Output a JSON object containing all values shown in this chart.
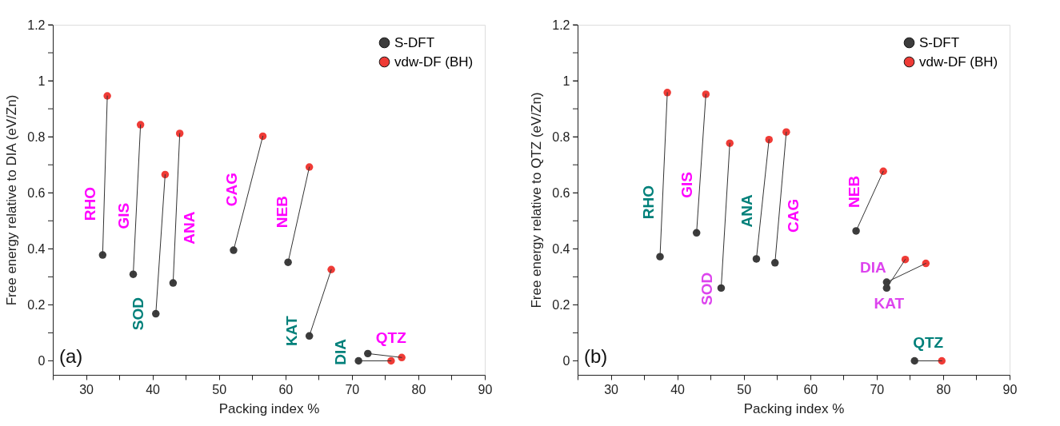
{
  "chart_data": [
    {
      "type": "scatter",
      "xlabel": "Packing index %",
      "ylabel": "Free energy relative to DIA (eV/Zn)",
      "xlim": [
        25,
        90
      ],
      "ylim": [
        -0.05,
        1.2
      ],
      "xticks": [
        {
          "value": 25,
          "label": null
        },
        30,
        {
          "value": 35,
          "label": null
        },
        40,
        {
          "value": 45,
          "label": null
        },
        50,
        {
          "value": 55,
          "label": null
        },
        60,
        {
          "value": 65,
          "label": null
        },
        70,
        {
          "value": 75,
          "label": null
        },
        80,
        {
          "value": 85,
          "label": null
        },
        90
      ],
      "yticks": [
        0,
        {
          "value": 0.1,
          "label": null
        },
        0.2,
        {
          "value": 0.3,
          "label": null
        },
        0.4,
        {
          "value": 0.5,
          "label": null
        },
        0.6,
        {
          "value": 0.7,
          "label": null
        },
        0.8,
        {
          "value": 0.9,
          "label": null
        },
        1,
        {
          "value": 1.1,
          "label": null
        },
        1.2
      ],
      "grid": false,
      "legend": "top right",
      "marker": "circle",
      "series": [
        {
          "type": "line",
          "marker": "none",
          "color": "#333333",
          "x": [
            32.5,
            33.2
          ],
          "values": [
            0.378,
            0.946
          ]
        },
        {
          "type": "line",
          "marker": "none",
          "color": "#333333",
          "x": [
            37.1,
            38.2
          ],
          "values": [
            0.309,
            0.843
          ]
        },
        {
          "type": "line",
          "marker": "none",
          "color": "#333333",
          "x": [
            40.5,
            41.9
          ],
          "values": [
            0.168,
            0.665
          ]
        },
        {
          "type": "line",
          "marker": "none",
          "color": "#333333",
          "x": [
            43.1,
            44.1
          ],
          "values": [
            0.278,
            0.812
          ]
        },
        {
          "type": "line",
          "marker": "none",
          "color": "#333333",
          "x": [
            52.2,
            56.6
          ],
          "values": [
            0.395,
            0.802
          ]
        },
        {
          "type": "line",
          "marker": "none",
          "color": "#333333",
          "x": [
            60.4,
            63.6
          ],
          "values": [
            0.352,
            0.692
          ]
        },
        {
          "type": "line",
          "marker": "none",
          "color": "#333333",
          "x": [
            63.6,
            66.9
          ],
          "values": [
            0.089,
            0.326
          ]
        },
        {
          "type": "line",
          "marker": "none",
          "color": "#333333",
          "x": [
            71.0,
            75.9
          ],
          "values": [
            0.0,
            0.0
          ]
        },
        {
          "type": "line",
          "marker": "none",
          "color": "#333333",
          "x": [
            72.4,
            77.5
          ],
          "values": [
            0.026,
            0.012
          ]
        },
        {
          "name": "S-DFT",
          "color": "#3c3c3c",
          "x": [
            32.5,
            37.1,
            40.5,
            43.1,
            52.2,
            60.4,
            63.6,
            71.0,
            72.4
          ],
          "values": [
            0.378,
            0.309,
            0.168,
            0.278,
            0.395,
            0.352,
            0.089,
            0.0,
            0.026
          ]
        },
        {
          "name": "vdw-DF (BH)",
          "color": "#ef3b36",
          "x": [
            33.2,
            38.2,
            41.9,
            44.1,
            56.6,
            63.6,
            66.9,
            75.9,
            77.5
          ],
          "values": [
            0.946,
            0.843,
            0.665,
            0.812,
            0.802,
            0.692,
            0.326,
            0.0,
            0.012
          ]
        }
      ],
      "annotations": [
        {
          "text": "RHO",
          "x": 32.5,
          "y": 0.378
        },
        {
          "text": "GIS",
          "x": 37.1,
          "y": 0.309
        },
        {
          "text": "SOD",
          "x": 40.5,
          "y": 0.168
        },
        {
          "text": "ANA",
          "x": 43.1,
          "y": 0.278
        },
        {
          "text": "CAG",
          "x": 52.2,
          "y": 0.395
        },
        {
          "text": "NEB",
          "x": 60.4,
          "y": 0.352
        },
        {
          "text": "KAT",
          "x": 63.6,
          "y": 0.089
        },
        {
          "text": "DIA",
          "x": 71.0,
          "y": 0.0
        },
        {
          "text": "QTZ",
          "x": 72.4,
          "y": 0.026
        },
        "(a)"
      ]
    },
    {
      "type": "scatter",
      "xlabel": "Packing index %",
      "ylabel": "Free energy relative to QTZ (eV/Zn)",
      "xlim": [
        25,
        90
      ],
      "ylim": [
        -0.05,
        1.2
      ],
      "xticks": [
        {
          "value": 25,
          "label": null
        },
        30,
        {
          "value": 35,
          "label": null
        },
        40,
        {
          "value": 45,
          "label": null
        },
        50,
        {
          "value": 55,
          "label": null
        },
        60,
        {
          "value": 65,
          "label": null
        },
        70,
        {
          "value": 75,
          "label": null
        },
        80,
        {
          "value": 85,
          "label": null
        },
        90
      ],
      "yticks": [
        0,
        {
          "value": 0.1,
          "label": null
        },
        0.2,
        {
          "value": 0.3,
          "label": null
        },
        0.4,
        {
          "value": 0.5,
          "label": null
        },
        0.6,
        {
          "value": 0.7,
          "label": null
        },
        0.8,
        {
          "value": 0.9,
          "label": null
        },
        1,
        {
          "value": 1.1,
          "label": null
        },
        1.2
      ],
      "grid": false,
      "legend": "top right",
      "marker": "circle",
      "series": [
        {
          "type": "line",
          "marker": "none",
          "color": "#333333",
          "x": [
            37.4,
            38.5
          ],
          "values": [
            0.372,
            0.958
          ]
        },
        {
          "type": "line",
          "marker": "none",
          "color": "#333333",
          "x": [
            42.9,
            44.3
          ],
          "values": [
            0.457,
            0.952
          ]
        },
        {
          "type": "line",
          "marker": "none",
          "color": "#333333",
          "x": [
            46.6,
            47.9
          ],
          "values": [
            0.26,
            0.777
          ]
        },
        {
          "type": "line",
          "marker": "none",
          "color": "#333333",
          "x": [
            51.9,
            53.8
          ],
          "values": [
            0.364,
            0.79
          ]
        },
        {
          "type": "line",
          "marker": "none",
          "color": "#333333",
          "x": [
            54.7,
            56.4
          ],
          "values": [
            0.35,
            0.817
          ]
        },
        {
          "type": "line",
          "marker": "none",
          "color": "#333333",
          "x": [
            66.9,
            71.0
          ],
          "values": [
            0.464,
            0.677
          ]
        },
        {
          "type": "line",
          "marker": "none",
          "color": "#333333",
          "x": [
            71.5,
            77.4
          ],
          "values": [
            0.281,
            0.348
          ]
        },
        {
          "type": "line",
          "marker": "none",
          "color": "#333333",
          "x": [
            71.5,
            74.3
          ],
          "values": [
            0.26,
            0.362
          ]
        },
        {
          "type": "line",
          "marker": "none",
          "color": "#333333",
          "x": [
            75.7,
            79.8
          ],
          "values": [
            0.0,
            0.0
          ]
        },
        {
          "name": "S-DFT",
          "color": "#3c3c3c",
          "x": [
            37.4,
            42.9,
            46.6,
            51.9,
            54.7,
            66.9,
            71.5,
            71.5,
            75.7
          ],
          "values": [
            0.372,
            0.457,
            0.26,
            0.364,
            0.35,
            0.464,
            0.281,
            0.26,
            0.0
          ]
        },
        {
          "name": "vdw-DF (BH)",
          "color": "#ef3b36",
          "x": [
            38.5,
            44.3,
            47.9,
            53.8,
            56.4,
            71.0,
            77.4,
            74.3,
            79.8
          ],
          "values": [
            0.958,
            0.952,
            0.777,
            0.79,
            0.817,
            0.677,
            0.348,
            0.362,
            0.0
          ]
        }
      ],
      "annotations": [
        {
          "text": "RHO",
          "x": 37.4,
          "y": 0.372
        },
        {
          "text": "GIS",
          "x": 42.9,
          "y": 0.457
        },
        {
          "text": "SOD",
          "x": 46.6,
          "y": 0.26
        },
        {
          "text": "ANA",
          "x": 51.9,
          "y": 0.364
        },
        {
          "text": "CAG",
          "x": 54.7,
          "y": 0.35
        },
        {
          "text": "NEB",
          "x": 66.9,
          "y": 0.464
        },
        {
          "text": "DIA",
          "x": 71.5,
          "y": 0.281
        },
        {
          "text": "KAT",
          "x": 71.5,
          "y": 0.26
        },
        {
          "text": "QTZ",
          "x": 75.7,
          "y": 0.0
        },
        "(b)"
      ]
    }
  ]
}
